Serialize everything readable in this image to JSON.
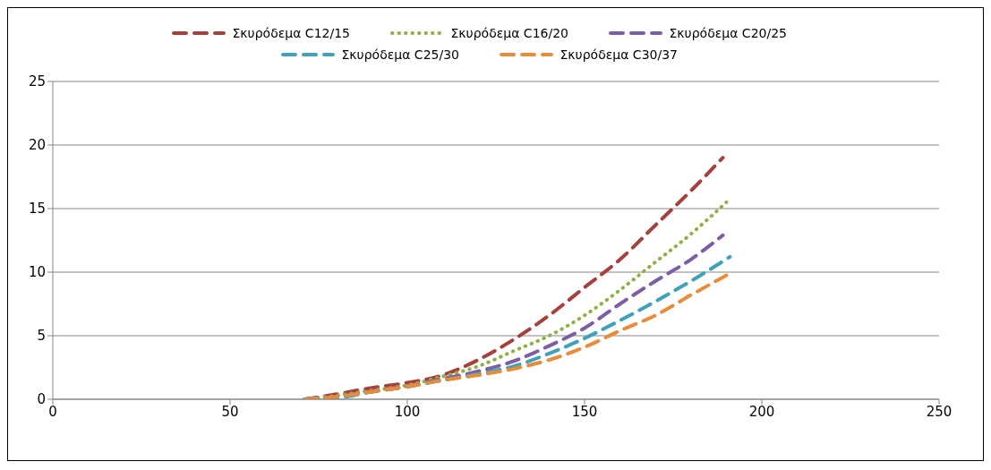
{
  "chart_data": {
    "type": "line",
    "series": [
      {
        "name": "Σκυρόδεμα C12/15",
        "color": "#a5403d",
        "line_style": "dashed",
        "x": [
          71,
          80,
          90,
          100,
          110,
          120,
          130,
          140,
          150,
          160,
          170,
          180,
          189
        ],
        "values": [
          0,
          0.4,
          0.9,
          1.3,
          1.9,
          3.1,
          4.7,
          6.6,
          8.8,
          11.0,
          13.7,
          16.4,
          19.0
        ]
      },
      {
        "name": "Σκυρόδεμα C16/20",
        "color": "#8fb046",
        "line_style": "dotted",
        "x": [
          71,
          80,
          90,
          100,
          110,
          120,
          130,
          140,
          150,
          160,
          170,
          180,
          190
        ],
        "values": [
          0,
          0.3,
          0.7,
          1.1,
          1.8,
          2.6,
          3.8,
          5.0,
          6.6,
          8.6,
          10.8,
          13.0,
          15.5
        ]
      },
      {
        "name": "Σκυρόδεμα C20/25",
        "color": "#7b5ea3",
        "line_style": "dashed",
        "x": [
          71,
          80,
          90,
          100,
          110,
          120,
          130,
          140,
          150,
          160,
          170,
          180,
          189
        ],
        "values": [
          0,
          0.2,
          0.6,
          1.0,
          1.6,
          2.2,
          3.0,
          4.2,
          5.6,
          7.5,
          9.3,
          11.0,
          12.9
        ]
      },
      {
        "name": "Σκυρόδεμα C25/30",
        "color": "#3fa2b9",
        "line_style": "dashed",
        "x": [
          71,
          80,
          90,
          100,
          110,
          120,
          130,
          140,
          150,
          160,
          170,
          180,
          191
        ],
        "values": [
          0,
          0.1,
          0.6,
          1.0,
          1.5,
          2.0,
          2.6,
          3.6,
          4.8,
          6.2,
          7.7,
          9.3,
          11.2
        ]
      },
      {
        "name": "Σκυρόδεμα C30/37",
        "color": "#e88b3a",
        "line_style": "dashed",
        "x": [
          71,
          80,
          90,
          100,
          110,
          120,
          130,
          140,
          150,
          160,
          170,
          180,
          191
        ],
        "values": [
          0,
          0.2,
          0.6,
          1.0,
          1.5,
          1.9,
          2.4,
          3.1,
          4.1,
          5.4,
          6.6,
          8.2,
          9.9
        ]
      }
    ],
    "xlim": [
      0,
      250
    ],
    "xticks": [
      0,
      50,
      100,
      150,
      200,
      250
    ],
    "ylim": [
      0,
      25
    ],
    "yticks": [
      0,
      5,
      10,
      15,
      20,
      25
    ],
    "grid": "y",
    "legend": "top",
    "marker": "none"
  }
}
